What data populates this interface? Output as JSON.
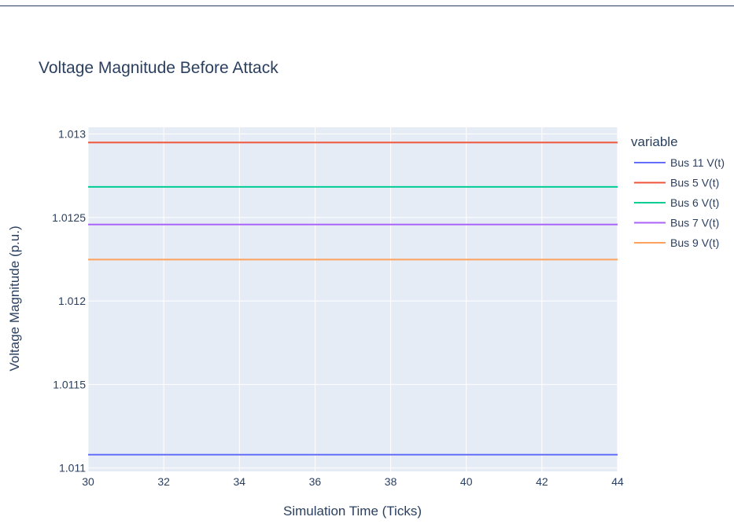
{
  "chart_data": {
    "type": "line",
    "title": "Voltage Magnitude Before Attack",
    "xlabel": "Simulation Time (Ticks)",
    "ylabel": "Voltage Magnitude (p.u.)",
    "xlim": [
      30,
      44
    ],
    "ylim": [
      1.01098,
      1.01304
    ],
    "x_ticks": [
      "30",
      "32",
      "34",
      "36",
      "38",
      "40",
      "42",
      "44"
    ],
    "y_ticks": [
      "1.011",
      "1.0115",
      "1.012",
      "1.0125",
      "1.013"
    ],
    "legend": {
      "title": "variable",
      "position": "right"
    },
    "grid": true,
    "background": "#e5ecf6",
    "series": [
      {
        "name": "Bus 11 V(t)",
        "color": "#636efa",
        "x": [
          30,
          44
        ],
        "y": [
          1.01108,
          1.01108
        ]
      },
      {
        "name": "Bus 5 V(t)",
        "color": "#ef553b",
        "x": [
          30,
          44
        ],
        "y": [
          1.012949,
          1.012949
        ]
      },
      {
        "name": "Bus 6 V(t)",
        "color": "#00cc96",
        "x": [
          30,
          44
        ],
        "y": [
          1.012683,
          1.012683
        ]
      },
      {
        "name": "Bus 7 V(t)",
        "color": "#ab63fa",
        "x": [
          30,
          44
        ],
        "y": [
          1.012458,
          1.012458
        ]
      },
      {
        "name": "Bus 9 V(t)",
        "color": "#ffa15a",
        "x": [
          30,
          44
        ],
        "y": [
          1.012248,
          1.012248
        ]
      }
    ]
  }
}
